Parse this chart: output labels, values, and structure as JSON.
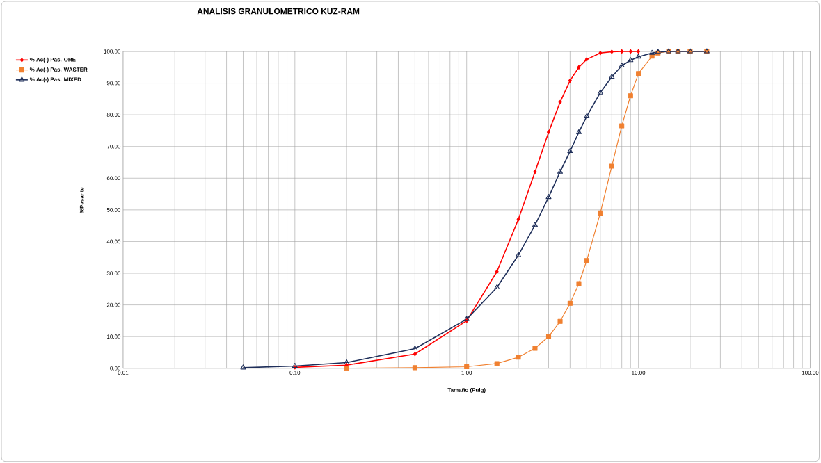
{
  "chart_data": {
    "type": "line",
    "title": "ANALISIS GRANULOMETRICO KUZ-RAM",
    "xlabel": "Tamaño (Pulg)",
    "ylabel": "%Pasante",
    "log": "x",
    "grid": true,
    "legend": "top left",
    "xlim": [
      0.01,
      100
    ],
    "ylim": [
      0,
      100
    ],
    "xticks": [
      {
        "value": 0.01,
        "label": "0.01"
      },
      {
        "value": 0.1,
        "label": "0.10"
      },
      {
        "value": 1,
        "label": "1.00"
      },
      {
        "value": 10,
        "label": "10.00"
      },
      {
        "value": 100,
        "label": "100.00"
      }
    ],
    "yticks": [
      {
        "value": 0,
        "label": "0.00"
      },
      {
        "value": 10,
        "label": "10.00"
      },
      {
        "value": 20,
        "label": "20.00"
      },
      {
        "value": 30,
        "label": "30.00"
      },
      {
        "value": 40,
        "label": "40.00"
      },
      {
        "value": 50,
        "label": "50.00"
      },
      {
        "value": 60,
        "label": "60.00"
      },
      {
        "value": 70,
        "label": "70.00"
      },
      {
        "value": 80,
        "label": "80.00"
      },
      {
        "value": 90,
        "label": "90.00"
      },
      {
        "value": 100,
        "label": "100.00"
      }
    ],
    "series": [
      {
        "name": "% Ac(-) Pas. ORE",
        "color": "#ff0000",
        "marker": "diamond",
        "x": [
          0.1,
          0.2,
          0.5,
          1,
          1.5,
          2,
          2.5,
          3,
          3.5,
          4,
          4.5,
          5,
          6,
          7,
          8,
          9,
          10
        ],
        "values": [
          0.3,
          1.0,
          4.5,
          15,
          30.5,
          47,
          62,
          74.5,
          84,
          90.8,
          95,
          97.5,
          99.5,
          99.9,
          100,
          100,
          100
        ]
      },
      {
        "name": "% Ac(-) Pas. WASTER",
        "color": "#f08030",
        "marker": "square",
        "x": [
          0.2,
          0.5,
          1,
          1.5,
          2,
          2.5,
          3,
          3.5,
          4,
          4.5,
          5,
          6,
          7,
          8,
          9,
          10,
          12,
          13,
          15,
          17,
          20,
          25
        ],
        "values": [
          0,
          0.2,
          0.5,
          1.5,
          3.5,
          6.3,
          10,
          14.8,
          20.5,
          26.7,
          34,
          49,
          63.8,
          76.5,
          86,
          93,
          98.5,
          99.5,
          100,
          100,
          100,
          100
        ]
      },
      {
        "name": "% Ac(-) Pas. MIXED",
        "color": "#1f2f5a",
        "marker": "triangle",
        "x": [
          0.05,
          0.1,
          0.2,
          0.5,
          1,
          1.5,
          2,
          2.5,
          3,
          3.5,
          4,
          4.5,
          5,
          6,
          7,
          8,
          9,
          10,
          12,
          13,
          15,
          17,
          20,
          25
        ],
        "values": [
          0.2,
          0.7,
          1.8,
          6.2,
          15.5,
          25.5,
          35.7,
          45.2,
          54,
          62,
          68.5,
          74.5,
          79.5,
          87,
          92,
          95.5,
          97.2,
          98.3,
          99.5,
          99.8,
          100,
          100,
          100,
          100
        ]
      }
    ]
  }
}
